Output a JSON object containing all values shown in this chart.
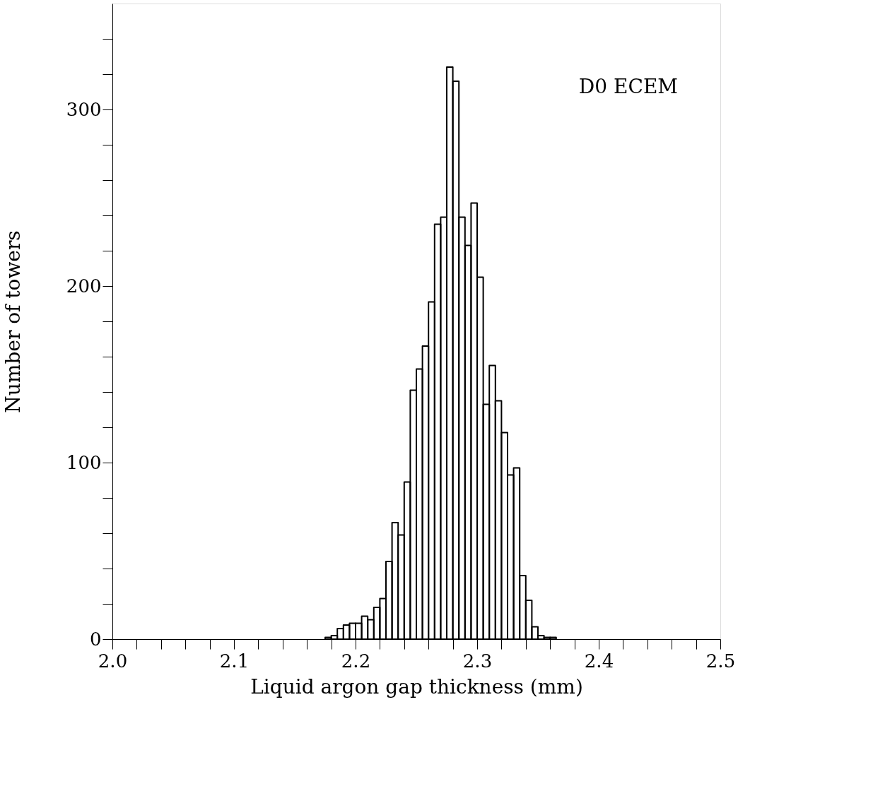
{
  "chart_data": {
    "type": "histogram",
    "xlabel": "Liquid argon gap thickness (mm)",
    "ylabel": "Number of towers",
    "annotations": [
      "D0 ECEM"
    ],
    "bins": [
      2.175,
      2.18,
      2.185,
      2.19,
      2.195,
      2.2,
      2.205,
      2.21,
      2.215,
      2.22,
      2.225,
      2.23,
      2.235,
      2.24,
      2.245,
      2.25,
      2.255,
      2.26,
      2.265,
      2.27,
      2.275,
      2.28,
      2.285,
      2.29,
      2.295,
      2.3,
      2.305,
      2.31,
      2.315,
      2.32,
      2.325,
      2.33,
      2.335,
      2.34,
      2.345,
      2.35,
      2.355,
      2.36,
      2.365
    ],
    "values": [
      1,
      2,
      6,
      8,
      9,
      9,
      13,
      11,
      18,
      23,
      44,
      66,
      59,
      89,
      141,
      153,
      166,
      191,
      235,
      239,
      324,
      316,
      239,
      223,
      247,
      205,
      133,
      155,
      135,
      117,
      93,
      97,
      36,
      22,
      7,
      2,
      1,
      1
    ],
    "color": "#000000",
    "xlim": [
      2.0,
      2.5
    ],
    "xticks": [
      {
        "value": 2.0,
        "label": "2.0"
      },
      {
        "value": 2.02,
        "label": null
      },
      {
        "value": 2.04,
        "label": null
      },
      {
        "value": 2.06,
        "label": null
      },
      {
        "value": 2.08,
        "label": null
      },
      {
        "value": 2.1,
        "label": "2.1"
      },
      {
        "value": 2.12,
        "label": null
      },
      {
        "value": 2.14,
        "label": null
      },
      {
        "value": 2.16,
        "label": null
      },
      {
        "value": 2.18,
        "label": null
      },
      {
        "value": 2.2,
        "label": "2.2"
      },
      {
        "value": 2.22,
        "label": null
      },
      {
        "value": 2.24,
        "label": null
      },
      {
        "value": 2.26,
        "label": null
      },
      {
        "value": 2.28,
        "label": null
      },
      {
        "value": 2.3,
        "label": "2.3"
      },
      {
        "value": 2.32,
        "label": null
      },
      {
        "value": 2.34,
        "label": null
      },
      {
        "value": 2.36,
        "label": null
      },
      {
        "value": 2.38,
        "label": null
      },
      {
        "value": 2.4,
        "label": "2.4"
      },
      {
        "value": 2.42,
        "label": null
      },
      {
        "value": 2.44,
        "label": null
      },
      {
        "value": 2.46,
        "label": null
      },
      {
        "value": 2.48,
        "label": null
      },
      {
        "value": 2.5,
        "label": "2.5"
      }
    ],
    "ylim": [
      0,
      360
    ],
    "yticks": [
      0,
      {
        "value": 20,
        "label": null
      },
      {
        "value": 40,
        "label": null
      },
      {
        "value": 60,
        "label": null
      },
      {
        "value": 80,
        "label": null
      },
      100,
      {
        "value": 120,
        "label": null
      },
      {
        "value": 140,
        "label": null
      },
      {
        "value": 160,
        "label": null
      },
      {
        "value": 180,
        "label": null
      },
      200,
      {
        "value": 220,
        "label": null
      },
      {
        "value": 240,
        "label": null
      },
      {
        "value": 260,
        "label": null
      },
      {
        "value": 280,
        "label": null
      },
      300,
      {
        "value": 320,
        "label": null
      },
      {
        "value": 340,
        "label": null
      }
    ],
    "grid": false
  }
}
